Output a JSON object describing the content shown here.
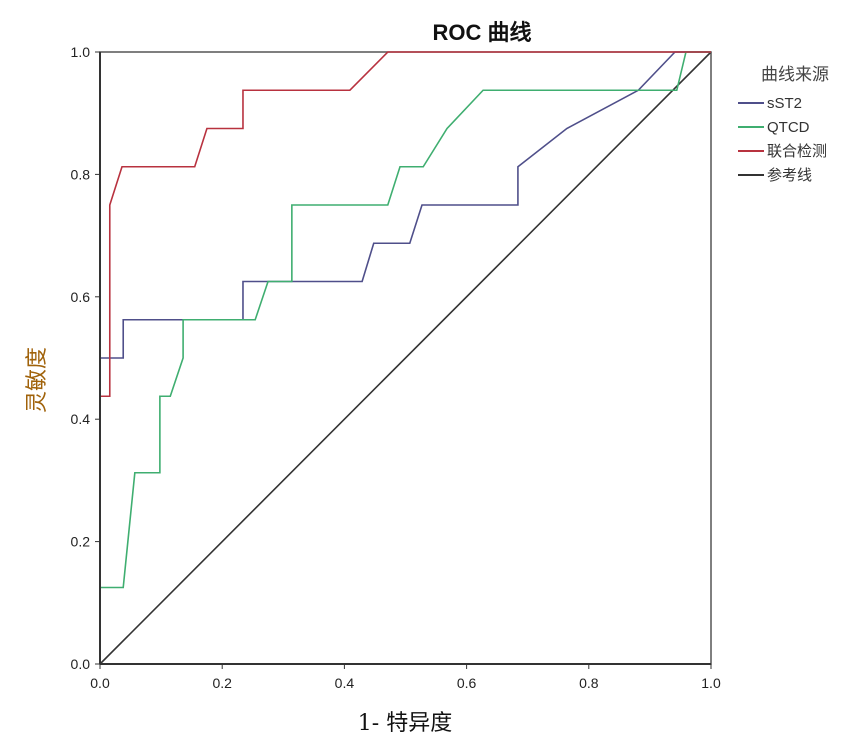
{
  "chart_data": {
    "type": "line",
    "title": "ROC 曲线",
    "xlabel": "1- 特异度",
    "ylabel": "灵敏度",
    "xlim": [
      0,
      1
    ],
    "ylim": [
      0,
      1
    ],
    "xticks": [
      "0.0",
      "0.2",
      "0.4",
      "0.6",
      "0.8",
      "1.0"
    ],
    "yticks": [
      "0.0",
      "0.2",
      "0.4",
      "0.6",
      "0.8",
      "1.0"
    ],
    "grid": false,
    "legend": {
      "title": "曲线来源",
      "placement": "right"
    },
    "series": [
      {
        "name": "sST2",
        "color": "#4f4f8a",
        "x": [
          0,
          0,
          0.038,
          0.038,
          0.234,
          0.234,
          0.429,
          0.448,
          0.507,
          0.527,
          0.684,
          0.684,
          0.764,
          0.881,
          0.941,
          1
        ],
        "y": [
          0,
          0.5,
          0.5,
          0.5625,
          0.5625,
          0.625,
          0.625,
          0.6875,
          0.6875,
          0.75,
          0.75,
          0.8125,
          0.875,
          0.9375,
          1,
          1
        ]
      },
      {
        "name": "QTCD",
        "color": "#3fae70",
        "x": [
          0,
          0,
          0.038,
          0.057,
          0.098,
          0.098,
          0.115,
          0.136,
          0.136,
          0.254,
          0.275,
          0.314,
          0.314,
          0.471,
          0.491,
          0.529,
          0.568,
          0.627,
          0.944,
          0.959,
          1
        ],
        "y": [
          0,
          0.125,
          0.125,
          0.3125,
          0.3125,
          0.4375,
          0.4375,
          0.5,
          0.5625,
          0.5625,
          0.625,
          0.625,
          0.75,
          0.75,
          0.8125,
          0.8125,
          0.875,
          0.9375,
          0.9375,
          1,
          1
        ]
      },
      {
        "name": "联合检测",
        "color": "#b8323f",
        "x": [
          0,
          0,
          0.016,
          0.016,
          0.036,
          0.155,
          0.175,
          0.234,
          0.234,
          0.409,
          0.471,
          1
        ],
        "y": [
          0,
          0.4375,
          0.4375,
          0.75,
          0.8125,
          0.8125,
          0.875,
          0.875,
          0.9375,
          0.9375,
          1,
          1
        ]
      },
      {
        "name": "参考线",
        "color": "#333333",
        "x": [
          0,
          1
        ],
        "y": [
          0,
          1
        ]
      }
    ]
  }
}
